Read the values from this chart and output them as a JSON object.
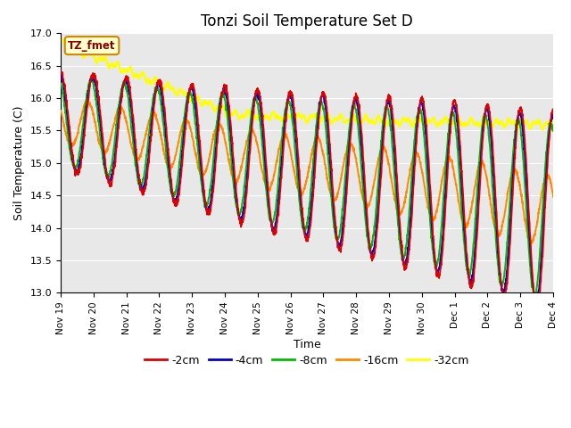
{
  "title": "Tonzi Soil Temperature Set D",
  "ylabel": "Soil Temperature (C)",
  "xlabel": "Time",
  "annotation": "TZ_fmet",
  "ylim": [
    13.0,
    17.0
  ],
  "yticks": [
    13.0,
    13.5,
    14.0,
    14.5,
    15.0,
    15.5,
    16.0,
    16.5,
    17.0
  ],
  "xtick_labels": [
    "Nov 19",
    "Nov 20",
    "Nov 21",
    "Nov 22",
    "Nov 23",
    "Nov 24",
    "Nov 25",
    "Nov 26",
    "Nov 27",
    "Nov 28",
    "Nov 29",
    "Nov 30",
    "Dec 1",
    "Dec 2",
    "Dec 3",
    "Dec 4"
  ],
  "series": {
    "-2cm": {
      "color": "#dd0000",
      "lw": 1.4
    },
    "-4cm": {
      "color": "#0000cc",
      "lw": 1.4
    },
    "-8cm": {
      "color": "#00bb00",
      "lw": 1.4
    },
    "-16cm": {
      "color": "#ff8800",
      "lw": 1.4
    },
    "-32cm": {
      "color": "#ffff00",
      "lw": 1.6
    }
  },
  "bg_color": "#e8e8e8",
  "fig_color": "#ffffff",
  "title_fontsize": 12,
  "axis_fontsize": 9,
  "tick_fontsize": 8
}
